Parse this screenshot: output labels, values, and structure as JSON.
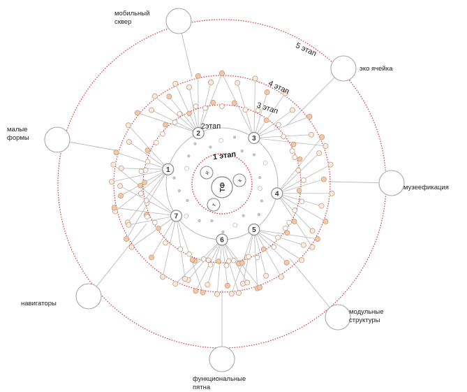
{
  "stages": [
    "1 этап",
    "2этап",
    "3 этап",
    "4 этап",
    "5 этап"
  ],
  "core": {
    "center_label": "ТФ",
    "satellites": [
      "и",
      "к",
      "т"
    ]
  },
  "hubs": [
    "1",
    "2",
    "3",
    "4",
    "5",
    "6",
    "7"
  ],
  "outer_nodes": [
    {
      "label": "мобильный\nсквер"
    },
    {
      "label": "эко ячейка"
    },
    {
      "label": "малые\nформы"
    },
    {
      "label": "музеефикация"
    },
    {
      "label": "навигаторы"
    },
    {
      "label": "модульные\nструктуры"
    },
    {
      "label": "функциональные\nпятна"
    }
  ],
  "colors": {
    "ring_dotted": "#e0303a",
    "line": "#b8b8b8",
    "node_stroke": "#a8a8a8",
    "bead_fill": "#f2c9a8",
    "bead_stroke": "#c89a80"
  }
}
